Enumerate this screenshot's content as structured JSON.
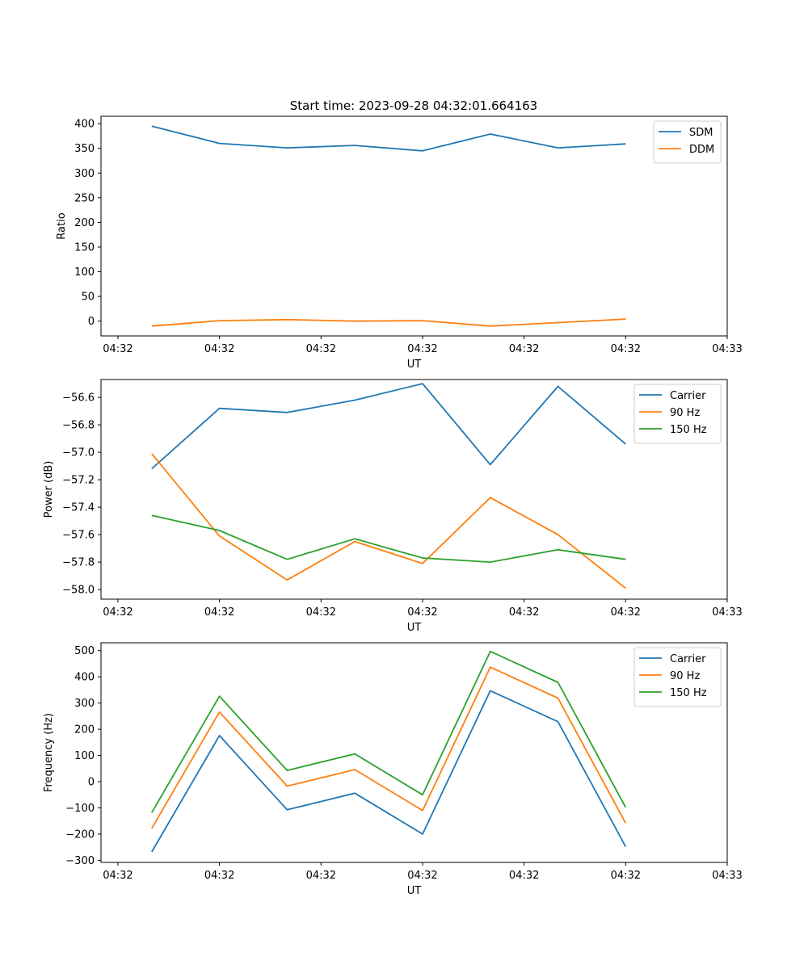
{
  "chart_data": [
    {
      "type": "line",
      "title": "Start time: 2023-09-28 04:32:01.664163",
      "xlabel": "UT",
      "ylabel": "Ratio",
      "x_tick_labels": [
        "04:32",
        "04:32",
        "04:32",
        "04:32",
        "04:32",
        "04:32",
        "04:32"
      ],
      "x_last_tick_label": "04:33",
      "y_ticks": [
        0,
        50,
        100,
        150,
        200,
        250,
        300,
        350,
        400
      ],
      "ylim": [
        -30,
        415
      ],
      "xlim": [
        -0.75,
        8.5
      ],
      "legend_position": "upper-right",
      "grid": false,
      "x": [
        0,
        1,
        2,
        3,
        4,
        5,
        6,
        7
      ],
      "series": [
        {
          "name": "SDM",
          "color": "#1f77b4",
          "values": [
            395,
            360,
            351,
            356,
            345,
            379,
            351,
            359
          ]
        },
        {
          "name": "DDM",
          "color": "#ff7f0e",
          "values": [
            -10,
            1,
            3,
            0,
            1,
            -10,
            -3,
            4
          ]
        }
      ]
    },
    {
      "type": "line",
      "title": "",
      "xlabel": "UT",
      "ylabel": "Power (dB)",
      "x_tick_labels": [
        "04:32",
        "04:32",
        "04:32",
        "04:32",
        "04:32",
        "04:32",
        "04:32"
      ],
      "x_last_tick_label": "04:33",
      "y_ticks": [
        -58.0,
        -57.8,
        -57.6,
        -57.4,
        -57.2,
        -57.0,
        -56.8,
        -56.6
      ],
      "ylim": [
        -58.07,
        -56.47
      ],
      "xlim": [
        -0.75,
        8.5
      ],
      "legend_position": "upper-right",
      "grid": false,
      "x": [
        0,
        1,
        2,
        3,
        4,
        5,
        6,
        7
      ],
      "series": [
        {
          "name": "Carrier",
          "color": "#1f77b4",
          "values": [
            -57.12,
            -56.68,
            -56.71,
            -56.62,
            -56.5,
            -57.09,
            -56.52,
            -56.94
          ]
        },
        {
          "name": "90 Hz",
          "color": "#ff7f0e",
          "values": [
            -57.01,
            -57.61,
            -57.93,
            -57.65,
            -57.81,
            -57.33,
            -57.6,
            -57.99
          ]
        },
        {
          "name": "150 Hz",
          "color": "#2ca02c",
          "values": [
            -57.46,
            -57.57,
            -57.78,
            -57.63,
            -57.77,
            -57.8,
            -57.71,
            -57.78
          ]
        }
      ]
    },
    {
      "type": "line",
      "title": "",
      "xlabel": "UT",
      "ylabel": "Frequency (Hz)",
      "x_tick_labels": [
        "04:32",
        "04:32",
        "04:32",
        "04:32",
        "04:32",
        "04:32",
        "04:32"
      ],
      "x_last_tick_label": "04:33",
      "y_ticks": [
        -300,
        -200,
        -100,
        0,
        100,
        200,
        300,
        400,
        500
      ],
      "ylim": [
        -308,
        530
      ],
      "xlim": [
        -0.75,
        8.5
      ],
      "legend_position": "upper-right",
      "grid": false,
      "x": [
        0,
        1,
        2,
        3,
        4,
        5,
        6,
        7
      ],
      "series": [
        {
          "name": "Carrier",
          "color": "#1f77b4",
          "values": [
            -268,
            176,
            -107,
            -44,
            -200,
            347,
            229,
            -248
          ]
        },
        {
          "name": "90 Hz",
          "color": "#ff7f0e",
          "values": [
            -178,
            266,
            -17,
            46,
            -110,
            437,
            319,
            -158
          ]
        },
        {
          "name": "150 Hz",
          "color": "#2ca02c",
          "values": [
            -118,
            326,
            43,
            106,
            -50,
            497,
            379,
            -98
          ]
        }
      ]
    }
  ]
}
